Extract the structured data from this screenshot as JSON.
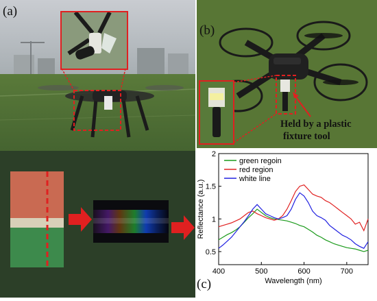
{
  "panels": {
    "a": {
      "label": "(a)"
    },
    "b": {
      "label": "(b)",
      "annotation_line1": "Held by a plastic",
      "annotation_line2": "fixture tool"
    },
    "c": {
      "label": "(c)"
    }
  },
  "chart_data": {
    "type": "line",
    "title": "",
    "xlabel": "Wavelength (nm)",
    "ylabel": "Reflectance (a.u.)",
    "xlim": [
      400,
      750
    ],
    "ylim": [
      0.3,
      2.0
    ],
    "xticks": [
      400,
      500,
      600,
      700
    ],
    "yticks": [
      0.5,
      1,
      1.5,
      2
    ],
    "ytick_labels": [
      "0.5",
      "1",
      "1.5",
      "2"
    ],
    "legend_position": "top-left",
    "series": [
      {
        "name": "green regoin",
        "color": "#1a9a1a",
        "x": [
          400,
          410,
          420,
          430,
          440,
          450,
          460,
          470,
          480,
          490,
          500,
          510,
          520,
          530,
          540,
          550,
          560,
          570,
          580,
          590,
          600,
          610,
          620,
          630,
          640,
          650,
          660,
          670,
          680,
          690,
          700,
          710,
          720,
          730,
          740,
          750
        ],
        "y": [
          0.68,
          0.72,
          0.76,
          0.79,
          0.83,
          0.88,
          0.95,
          1.02,
          1.08,
          1.15,
          1.1,
          1.05,
          1.02,
          1.0,
          0.99,
          0.98,
          0.97,
          0.95,
          0.93,
          0.9,
          0.88,
          0.84,
          0.8,
          0.75,
          0.72,
          0.68,
          0.65,
          0.62,
          0.6,
          0.58,
          0.56,
          0.55,
          0.54,
          0.52,
          0.5,
          0.52
        ]
      },
      {
        "name": "red region",
        "color": "#e02020",
        "x": [
          400,
          410,
          420,
          430,
          440,
          450,
          460,
          470,
          480,
          490,
          500,
          510,
          520,
          530,
          540,
          550,
          560,
          570,
          580,
          590,
          600,
          610,
          620,
          630,
          640,
          650,
          660,
          670,
          680,
          690,
          700,
          710,
          720,
          730,
          740,
          750
        ],
        "y": [
          0.88,
          0.9,
          0.92,
          0.94,
          0.97,
          1.0,
          1.05,
          1.1,
          1.12,
          1.08,
          1.05,
          1.02,
          1.0,
          0.98,
          1.0,
          1.05,
          1.15,
          1.28,
          1.42,
          1.5,
          1.52,
          1.45,
          1.38,
          1.35,
          1.33,
          1.28,
          1.25,
          1.2,
          1.15,
          1.1,
          1.05,
          1.0,
          0.92,
          0.95,
          0.82,
          1.0
        ]
      },
      {
        "name": "white line",
        "color": "#2020e0",
        "x": [
          400,
          410,
          420,
          430,
          440,
          450,
          460,
          470,
          480,
          490,
          500,
          510,
          520,
          530,
          540,
          550,
          560,
          570,
          580,
          590,
          600,
          610,
          620,
          630,
          640,
          650,
          660,
          670,
          680,
          690,
          700,
          710,
          720,
          730,
          740,
          750
        ],
        "y": [
          0.55,
          0.6,
          0.66,
          0.72,
          0.8,
          0.88,
          0.96,
          1.05,
          1.15,
          1.22,
          1.15,
          1.08,
          1.05,
          1.02,
          1.0,
          1.02,
          1.05,
          1.15,
          1.3,
          1.4,
          1.35,
          1.25,
          1.12,
          1.05,
          1.02,
          0.98,
          0.9,
          0.85,
          0.8,
          0.75,
          0.72,
          0.68,
          0.62,
          0.58,
          0.55,
          0.65
        ]
      }
    ]
  }
}
